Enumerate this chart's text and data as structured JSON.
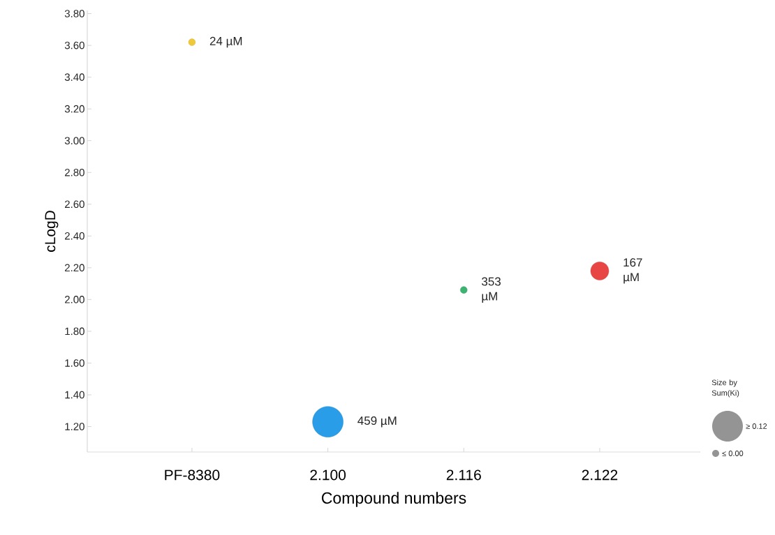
{
  "chart_data": {
    "type": "bubble",
    "xlabel": "Compound numbers",
    "ylabel": "cLogD",
    "legend_title": "Size by Sum(Ki)",
    "categories": [
      "PF-8380",
      "2.100",
      "2.116",
      "2.122"
    ],
    "values": [
      3.62,
      1.23,
      2.06,
      2.18
    ],
    "sizes": [
      0.05,
      1,
      0.05,
      0.35
    ],
    "colors": [
      "#f0c93a",
      "#2a9de8",
      "#3cb371",
      "#e84545"
    ],
    "annotations": [
      {
        "text": "24 µM",
        "x": "PF-8380",
        "y": 3.62
      },
      {
        "text": "459 µM",
        "x": "2.100",
        "y": 1.23
      },
      {
        "text": "353 µM",
        "x": "2.116",
        "y": 2.06
      },
      {
        "text": "167 µM",
        "x": "2.122",
        "y": 2.18
      },
      "≥ 0.12",
      "≤ 0.00"
    ],
    "ylim": [
      1.04,
      3.82
    ],
    "yticks": [
      {
        "value": 1.2,
        "label": "1.20"
      },
      {
        "value": 1.4,
        "label": "1.40"
      },
      {
        "value": 1.6,
        "label": "1.60"
      },
      {
        "value": 1.8,
        "label": "1.80"
      },
      {
        "value": 2.0,
        "label": "2.00"
      },
      {
        "value": 2.2,
        "label": "2.20"
      },
      {
        "value": 2.4,
        "label": "2.40"
      },
      {
        "value": 2.6,
        "label": "2.60"
      },
      {
        "value": 2.8,
        "label": "2.80"
      },
      {
        "value": 3.0,
        "label": "3.00"
      },
      {
        "value": 3.2,
        "label": "3.20"
      },
      {
        "value": 3.4,
        "label": "3.40"
      },
      {
        "value": 3.6,
        "label": "3.60"
      },
      {
        "value": 3.8,
        "label": "3.80"
      }
    ],
    "grid": false
  }
}
